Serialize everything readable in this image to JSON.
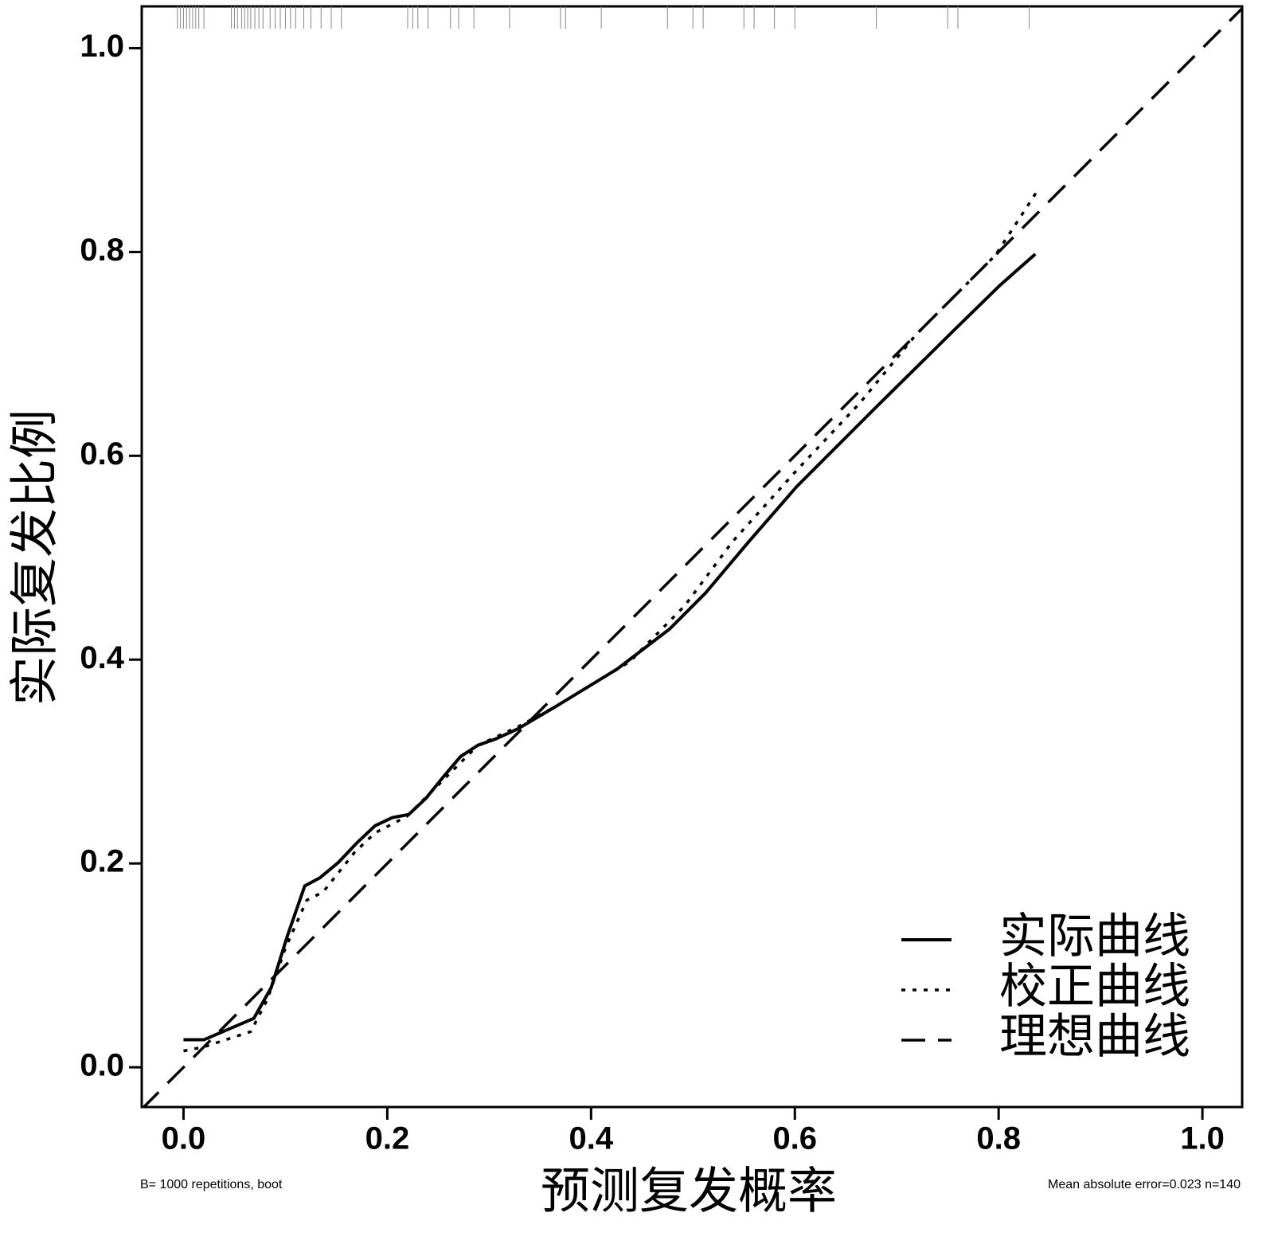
{
  "chart_data": {
    "type": "line",
    "xlabel": "预测复发概率",
    "ylabel": "实际复发比例",
    "footnote_left": "B= 1000 repetitions, boot",
    "footnote_right": "Mean absolute error=0.023 n=140",
    "xlim": [
      -0.041,
      1.039
    ],
    "ylim": [
      -0.039,
      1.041
    ],
    "xticks": [
      {
        "value": 0,
        "label": "0.0"
      },
      0.2,
      0.4,
      0.6,
      0.8,
      {
        "value": 1,
        "label": "1.0"
      }
    ],
    "yticks": [
      {
        "value": 0,
        "label": "0.0"
      },
      0.2,
      0.4,
      0.6,
      0.8,
      {
        "value": 1,
        "label": "1.0"
      }
    ],
    "legend": "bottom-right",
    "series": [
      {
        "name": "实际曲线",
        "color": "#000000",
        "style": "solid",
        "x": [
          0,
          0.02,
          0.069,
          0.086,
          0.102,
          0.119,
          0.134,
          0.152,
          0.17,
          0.188,
          0.205,
          0.221,
          0.238,
          0.255,
          0.272,
          0.289,
          0.306,
          0.328,
          0.367,
          0.426,
          0.477,
          0.512,
          0.555,
          0.602,
          0.68,
          0.758,
          0.801,
          0.836
        ],
        "values": [
          0.027,
          0.027,
          0.048,
          0.078,
          0.129,
          0.178,
          0.186,
          0.201,
          0.22,
          0.237,
          0.245,
          0.248,
          0.264,
          0.285,
          0.305,
          0.316,
          0.322,
          0.332,
          0.355,
          0.391,
          0.43,
          0.465,
          0.516,
          0.57,
          0.648,
          0.725,
          0.767,
          0.798
        ]
      },
      {
        "name": "校正曲线",
        "color": "#000000",
        "style": "dotted",
        "x": [
          0,
          0.02,
          0.066,
          0.082,
          0.1,
          0.121,
          0.137,
          0.168,
          0.188,
          0.219,
          0.25,
          0.289,
          0.328,
          0.367,
          0.438,
          0.492,
          0.539,
          0.602,
          0.664,
          0.719,
          0.797,
          0.84
        ],
        "values": [
          0.016,
          0.02,
          0.035,
          0.066,
          0.117,
          0.164,
          0.172,
          0.211,
          0.23,
          0.246,
          0.277,
          0.316,
          0.334,
          0.355,
          0.398,
          0.453,
          0.516,
          0.586,
          0.652,
          0.719,
          0.797,
          0.863
        ]
      },
      {
        "name": "理想曲线",
        "color": "#000000",
        "style": "dashed",
        "x": [
          -0.041,
          1.039
        ],
        "values": [
          -0.041,
          1.039
        ]
      }
    ],
    "rug": [
      -0.006,
      -0.003,
      0,
      0.003,
      0.006,
      0.009,
      0.012,
      0.015,
      0.02,
      0.047,
      0.05,
      0.053,
      0.057,
      0.06,
      0.063,
      0.066,
      0.07,
      0.074,
      0.078,
      0.085,
      0.09,
      0.095,
      0.1,
      0.105,
      0.11,
      0.118,
      0.125,
      0.135,
      0.145,
      0.155,
      0.22,
      0.225,
      0.23,
      0.24,
      0.262,
      0.27,
      0.285,
      0.32,
      0.37,
      0.375,
      0.41,
      0.475,
      0.5,
      0.51,
      0.55,
      0.56,
      0.58,
      0.6,
      0.68,
      0.75,
      0.76,
      0.83
    ]
  }
}
